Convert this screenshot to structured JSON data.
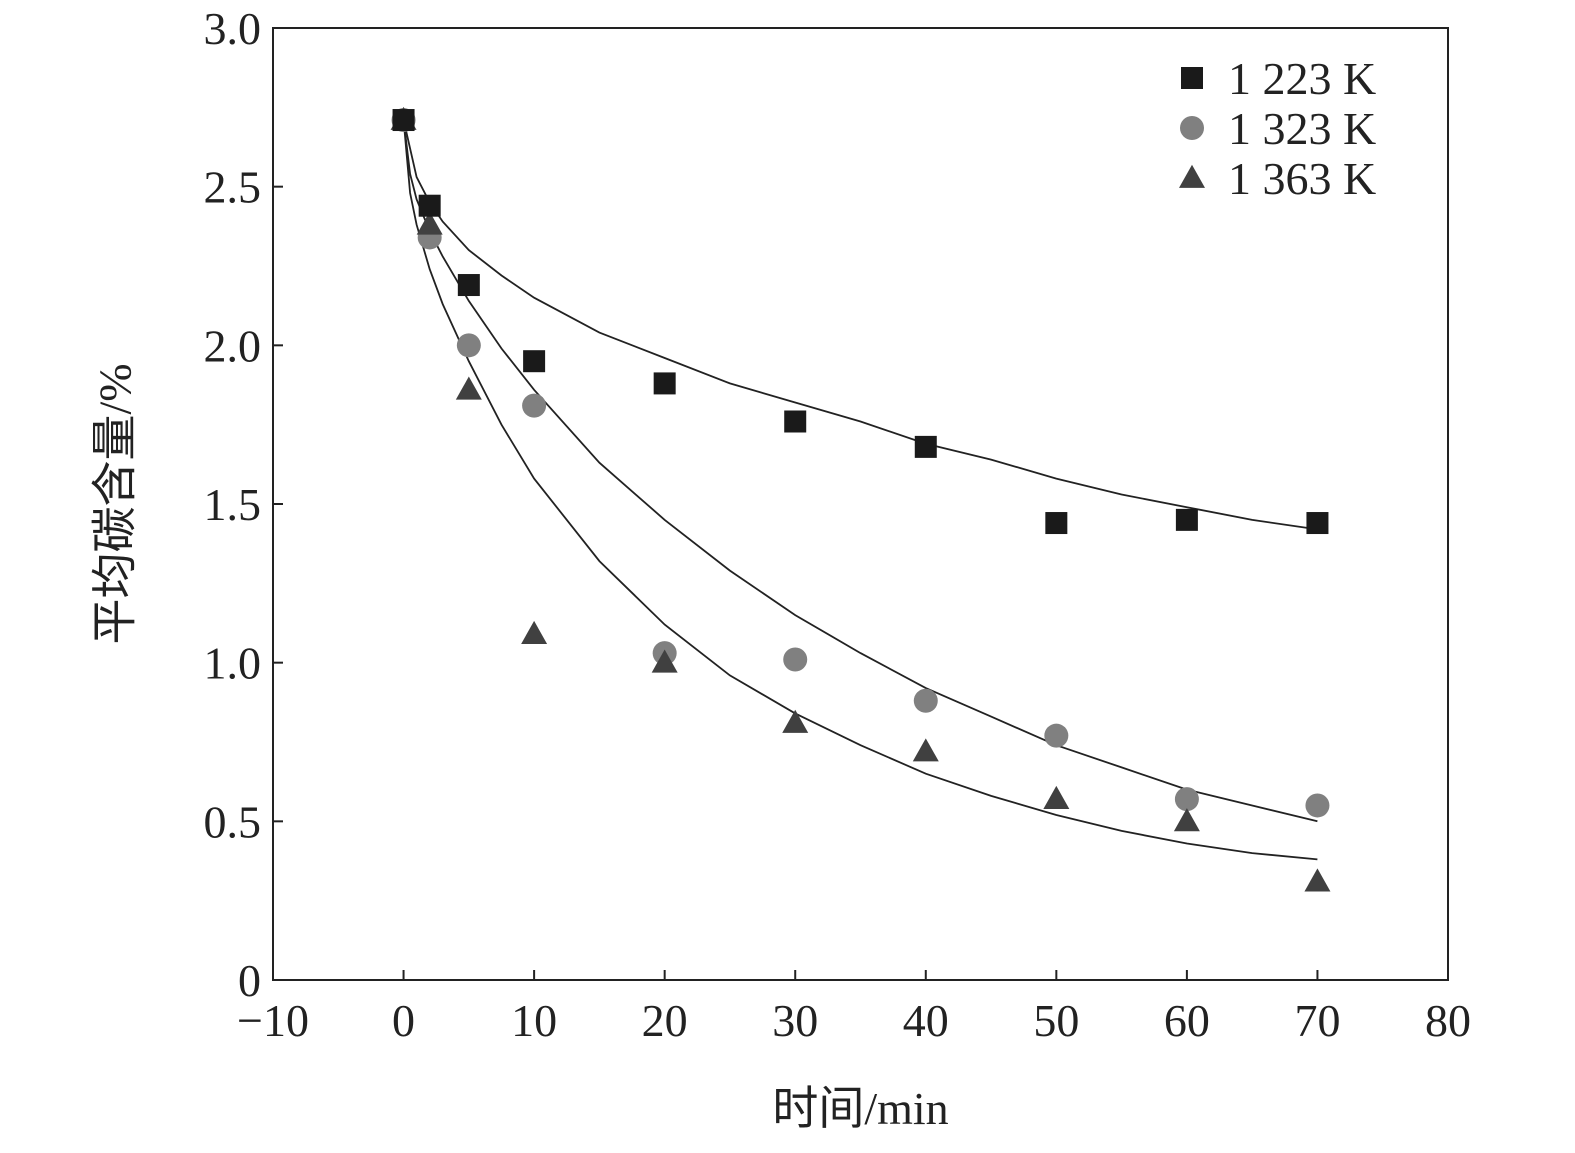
{
  "chart_data": {
    "type": "scatter",
    "title": "",
    "xlabel": "时间/min",
    "ylabel": "平均碳含量/%",
    "xlim": [
      -10,
      80
    ],
    "ylim": [
      0,
      3.0
    ],
    "x_ticks": [
      -10,
      0,
      10,
      20,
      30,
      40,
      50,
      60,
      70,
      80
    ],
    "x_tick_labels": [
      "−10",
      "0",
      "10",
      "20",
      "30",
      "40",
      "50",
      "60",
      "70",
      "80"
    ],
    "y_ticks": [
      0,
      0.5,
      1.0,
      1.5,
      2.0,
      2.5,
      3.0
    ],
    "y_tick_labels": [
      "0",
      "0.5",
      "1.0",
      "1.5",
      "2.0",
      "2.5",
      "3.0"
    ],
    "grid": false,
    "legend_position": "top-right",
    "series": [
      {
        "name": "1 223 K",
        "marker": "square",
        "color": "#1a1a1a",
        "x": [
          0,
          2,
          5,
          10,
          20,
          30,
          40,
          50,
          60,
          70
        ],
        "y": [
          2.71,
          2.44,
          2.19,
          1.95,
          1.88,
          1.76,
          1.68,
          1.44,
          1.45,
          1.44
        ],
        "fit": [
          [
            0,
            2.71
          ],
          [
            1,
            2.53
          ],
          [
            2,
            2.45
          ],
          [
            3,
            2.39
          ],
          [
            5,
            2.3
          ],
          [
            7.5,
            2.22
          ],
          [
            10,
            2.15
          ],
          [
            15,
            2.04
          ],
          [
            20,
            1.96
          ],
          [
            25,
            1.88
          ],
          [
            30,
            1.82
          ],
          [
            35,
            1.76
          ],
          [
            40,
            1.69
          ],
          [
            45,
            1.64
          ],
          [
            50,
            1.58
          ],
          [
            55,
            1.53
          ],
          [
            60,
            1.49
          ],
          [
            65,
            1.45
          ],
          [
            70,
            1.42
          ]
        ]
      },
      {
        "name": "1 323 K",
        "marker": "circle",
        "color": "#808080",
        "x": [
          0,
          2,
          5,
          10,
          20,
          30,
          40,
          50,
          60,
          70
        ],
        "y": [
          2.71,
          2.34,
          2.0,
          1.81,
          1.03,
          1.01,
          0.88,
          0.77,
          0.57,
          0.55
        ],
        "fit": [
          [
            0,
            2.71
          ],
          [
            0.5,
            2.54
          ],
          [
            1,
            2.46
          ],
          [
            2,
            2.36
          ],
          [
            3,
            2.28
          ],
          [
            5,
            2.14
          ],
          [
            7.5,
            1.99
          ],
          [
            10,
            1.86
          ],
          [
            15,
            1.63
          ],
          [
            20,
            1.45
          ],
          [
            25,
            1.29
          ],
          [
            30,
            1.15
          ],
          [
            35,
            1.03
          ],
          [
            40,
            0.92
          ],
          [
            45,
            0.83
          ],
          [
            50,
            0.74
          ],
          [
            55,
            0.67
          ],
          [
            60,
            0.6
          ],
          [
            65,
            0.55
          ],
          [
            70,
            0.5
          ]
        ]
      },
      {
        "name": "1 363 K",
        "marker": "triangle",
        "color": "#404040",
        "x": [
          0,
          2,
          5,
          10,
          20,
          30,
          40,
          50,
          60,
          70
        ],
        "y": [
          2.71,
          2.38,
          1.86,
          1.09,
          1.0,
          0.81,
          0.72,
          0.57,
          0.5,
          0.31
        ],
        "fit": [
          [
            0,
            2.71
          ],
          [
            0.5,
            2.48
          ],
          [
            1,
            2.38
          ],
          [
            2,
            2.24
          ],
          [
            3,
            2.13
          ],
          [
            5,
            1.95
          ],
          [
            7.5,
            1.75
          ],
          [
            10,
            1.58
          ],
          [
            15,
            1.32
          ],
          [
            20,
            1.12
          ],
          [
            25,
            0.96
          ],
          [
            30,
            0.84
          ],
          [
            35,
            0.74
          ],
          [
            40,
            0.65
          ],
          [
            45,
            0.58
          ],
          [
            50,
            0.52
          ],
          [
            55,
            0.47
          ],
          [
            60,
            0.43
          ],
          [
            65,
            0.4
          ],
          [
            70,
            0.38
          ]
        ]
      }
    ]
  }
}
